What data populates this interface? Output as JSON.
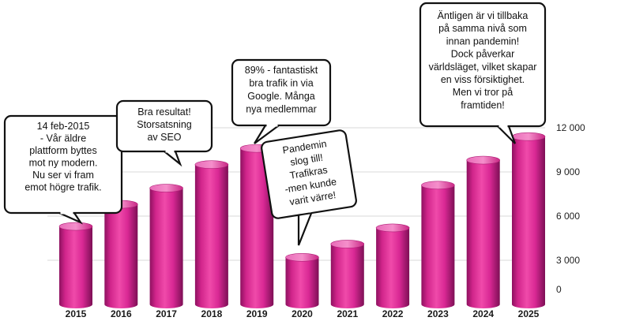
{
  "chart_data": {
    "type": "bar",
    "style": "3d-cylinder",
    "bar_color": "#e8359e",
    "categories": [
      "2015",
      "2016",
      "2017",
      "2018",
      "2019",
      "2020",
      "2021",
      "2022",
      "2023",
      "2024",
      "2025"
    ],
    "values": [
      5300,
      6800,
      7900,
      9500,
      10600,
      3200,
      4100,
      5200,
      8100,
      9800,
      11400
    ],
    "ylim": [
      0,
      12000
    ],
    "yticks": [
      0,
      3000,
      6000,
      9000,
      12000
    ],
    "ytick_labels": [
      "0",
      "3 000",
      "6 000",
      "9 000",
      "12 000"
    ],
    "y_axis_side": "right",
    "grid": true,
    "annotations": [
      {
        "category": "2015",
        "lines": [
          "14 feb-2015",
          "- Vår äldre",
          "plattform byttes",
          "mot ny modern.",
          "Nu ser vi fram",
          "emot högre trafik."
        ]
      },
      {
        "category": "2017",
        "lines": [
          "Bra resultat!",
          "Storsatsning",
          "av SEO"
        ]
      },
      {
        "category": "2019",
        "lines": [
          "89% - fantastiskt",
          "bra trafik in via",
          "Google. Många",
          "nya medlemmar"
        ]
      },
      {
        "category": "2020",
        "lines": [
          "Pandemin",
          "slog till!",
          "Trafikras",
          "-men kunde",
          "varit värre!"
        ]
      },
      {
        "category": "2025",
        "lines": [
          "Äntligen är vi tillbaka",
          "på samma nivå som",
          "innan pandemin!",
          "Dock påverkar",
          "världsläget, vilket skapar",
          "en viss försiktighet.",
          "Men vi tror på",
          "framtiden!"
        ]
      }
    ]
  }
}
